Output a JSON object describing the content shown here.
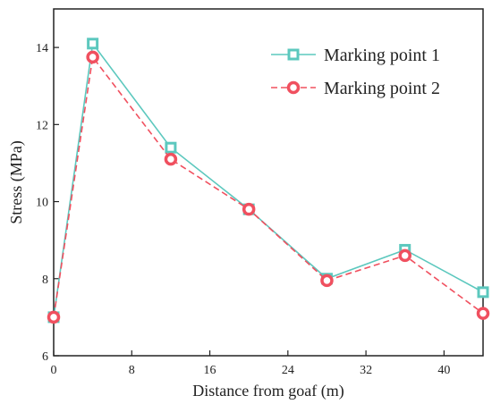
{
  "chart_data": {
    "type": "line",
    "title": "",
    "xlabel": "Distance from goaf (m)",
    "ylabel": "Stress (MPa)",
    "xlim": [
      0,
      44
    ],
    "ylim": [
      6,
      15
    ],
    "xticks": [
      0,
      8,
      16,
      24,
      32,
      40
    ],
    "yticks": [
      6,
      8,
      10,
      12,
      14
    ],
    "grid": false,
    "legend_position": "top-right",
    "series": [
      {
        "name": "Marking point 1",
        "color": "#5CC8BE",
        "marker": "square",
        "line_style": "solid",
        "x": [
          0,
          4,
          12,
          20,
          28,
          36,
          44
        ],
        "y": [
          7.0,
          14.1,
          11.4,
          9.8,
          8.0,
          8.75,
          7.65
        ]
      },
      {
        "name": "Marking point 2",
        "color": "#F0505F",
        "marker": "circle",
        "line_style": "dashed",
        "x": [
          0,
          4,
          12,
          20,
          28,
          36,
          44
        ],
        "y": [
          7.0,
          13.75,
          11.1,
          9.8,
          7.95,
          8.6,
          7.1
        ]
      }
    ]
  }
}
